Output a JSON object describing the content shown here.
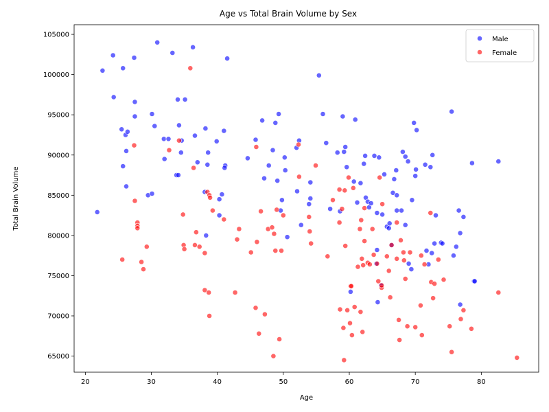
{
  "chart_data": {
    "type": "scatter",
    "title": "Age vs Total Brain Volume by Sex",
    "xlabel": "Age",
    "ylabel": "Total Brain Volume",
    "xlim": [
      18.3,
      88.7
    ],
    "ylim": [
      63000,
      106200
    ],
    "x_ticks": [
      20,
      30,
      40,
      50,
      60,
      70,
      80
    ],
    "y_ticks": [
      65000,
      70000,
      75000,
      80000,
      85000,
      90000,
      95000,
      100000,
      105000
    ],
    "grid": false,
    "legend_position": "top-right",
    "series": [
      {
        "name": "Male",
        "color": "#0000ff",
        "points": [
          [
            21.8,
            82900
          ],
          [
            22.6,
            100500
          ],
          [
            24.2,
            102400
          ],
          [
            24.3,
            97200
          ],
          [
            25.5,
            93200
          ],
          [
            25.7,
            100800
          ],
          [
            25.7,
            88600
          ],
          [
            26.1,
            92500
          ],
          [
            26.2,
            86100
          ],
          [
            26.4,
            92900
          ],
          [
            26.2,
            90500
          ],
          [
            27.4,
            102100
          ],
          [
            27.5,
            96600
          ],
          [
            27.5,
            94800
          ],
          [
            29.5,
            85000
          ],
          [
            30.1,
            95100
          ],
          [
            30.1,
            85200
          ],
          [
            30.5,
            93600
          ],
          [
            30.9,
            104000
          ],
          [
            31.9,
            92000
          ],
          [
            32.0,
            89500
          ],
          [
            32.6,
            92000
          ],
          [
            33.2,
            102700
          ],
          [
            33.8,
            87500
          ],
          [
            34.0,
            96900
          ],
          [
            34.1,
            87500
          ],
          [
            34.2,
            93700
          ],
          [
            34.5,
            90300
          ],
          [
            34.6,
            91800
          ],
          [
            35.1,
            96900
          ],
          [
            36.3,
            103400
          ],
          [
            36.6,
            92400
          ],
          [
            37.0,
            89100
          ],
          [
            38.1,
            85400
          ],
          [
            38.2,
            93300
          ],
          [
            38.3,
            80000
          ],
          [
            38.6,
            90300
          ],
          [
            38.5,
            88800
          ],
          [
            39.9,
            91700
          ],
          [
            40.3,
            84500
          ],
          [
            40.3,
            82500
          ],
          [
            40.7,
            85100
          ],
          [
            41.0,
            93000
          ],
          [
            41.2,
            88700
          ],
          [
            41.1,
            88400
          ],
          [
            41.5,
            102000
          ],
          [
            44.6,
            89600
          ],
          [
            45.8,
            91900
          ],
          [
            46.8,
            94300
          ],
          [
            47.1,
            87100
          ],
          [
            47.8,
            88700
          ],
          [
            48.4,
            90600
          ],
          [
            48.8,
            94000
          ],
          [
            49.1,
            86800
          ],
          [
            49.3,
            95100
          ],
          [
            49.6,
            83100
          ],
          [
            49.8,
            84400
          ],
          [
            50.2,
            89700
          ],
          [
            50.3,
            88100
          ],
          [
            50.6,
            79800
          ],
          [
            52.0,
            90900
          ],
          [
            52.1,
            85500
          ],
          [
            52.4,
            91800
          ],
          [
            52.7,
            81300
          ],
          [
            53.9,
            83900
          ],
          [
            54.1,
            86600
          ],
          [
            54.1,
            84600
          ],
          [
            55.4,
            99900
          ],
          [
            56.0,
            95100
          ],
          [
            56.5,
            91500
          ],
          [
            57.1,
            83300
          ],
          [
            58.2,
            90300
          ],
          [
            58.6,
            83000
          ],
          [
            59.0,
            94800
          ],
          [
            59.2,
            90400
          ],
          [
            59.4,
            91000
          ],
          [
            59.6,
            88500
          ],
          [
            60.2,
            73000
          ],
          [
            60.7,
            86700
          ],
          [
            60.9,
            94400
          ],
          [
            61.2,
            84100
          ],
          [
            61.7,
            86500
          ],
          [
            62.2,
            88900
          ],
          [
            62.4,
            89900
          ],
          [
            62.5,
            84700
          ],
          [
            62.8,
            84200
          ],
          [
            63.0,
            83500
          ],
          [
            63.3,
            84000
          ],
          [
            63.8,
            89900
          ],
          [
            64.1,
            76500
          ],
          [
            64.2,
            82800
          ],
          [
            64.2,
            78200
          ],
          [
            64.3,
            71700
          ],
          [
            64.5,
            89700
          ],
          [
            64.8,
            73800
          ],
          [
            65.0,
            82600
          ],
          [
            65.3,
            87600
          ],
          [
            65.7,
            81100
          ],
          [
            66.0,
            80900
          ],
          [
            66.1,
            81500
          ],
          [
            66.4,
            78800
          ],
          [
            66.6,
            85300
          ],
          [
            66.8,
            87000
          ],
          [
            67.1,
            88100
          ],
          [
            67.2,
            85000
          ],
          [
            67.2,
            83100
          ],
          [
            67.9,
            83100
          ],
          [
            68.1,
            90400
          ],
          [
            68.5,
            81300
          ],
          [
            68.5,
            89800
          ],
          [
            68.9,
            89200
          ],
          [
            69.0,
            76500
          ],
          [
            69.4,
            75800
          ],
          [
            69.5,
            84400
          ],
          [
            69.8,
            94000
          ],
          [
            70.1,
            88200
          ],
          [
            70.2,
            93100
          ],
          [
            70.0,
            87400
          ],
          [
            71.5,
            88800
          ],
          [
            71.7,
            78100
          ],
          [
            72.0,
            76400
          ],
          [
            72.3,
            88500
          ],
          [
            72.5,
            77800
          ],
          [
            72.6,
            90000
          ],
          [
            72.9,
            79000
          ],
          [
            73.1,
            82500
          ],
          [
            73.9,
            79100
          ],
          [
            74.1,
            79000
          ],
          [
            75.5,
            95400
          ],
          [
            75.8,
            77500
          ],
          [
            76.2,
            78600
          ],
          [
            76.6,
            83100
          ],
          [
            76.8,
            80300
          ],
          [
            76.8,
            71400
          ],
          [
            77.3,
            82300
          ],
          [
            78.6,
            89000
          ],
          [
            78.9,
            74300
          ],
          [
            79.0,
            74300
          ],
          [
            82.6,
            89200
          ]
        ]
      },
      {
        "name": "Female",
        "color": "#ff0000",
        "points": [
          [
            25.6,
            77000
          ],
          [
            27.4,
            91200
          ],
          [
            27.5,
            84300
          ],
          [
            27.9,
            81600
          ],
          [
            27.9,
            81200
          ],
          [
            27.9,
            80900
          ],
          [
            28.5,
            76700
          ],
          [
            28.8,
            75800
          ],
          [
            29.3,
            78600
          ],
          [
            32.7,
            90600
          ],
          [
            34.2,
            91800
          ],
          [
            34.8,
            82600
          ],
          [
            34.9,
            78800
          ],
          [
            35.0,
            78300
          ],
          [
            35.9,
            100800
          ],
          [
            36.4,
            88400
          ],
          [
            36.8,
            80400
          ],
          [
            36.6,
            78800
          ],
          [
            37.3,
            78600
          ],
          [
            38.1,
            77800
          ],
          [
            38.1,
            73200
          ],
          [
            38.7,
            72900
          ],
          [
            38.5,
            85400
          ],
          [
            38.8,
            85000
          ],
          [
            38.9,
            84700
          ],
          [
            38.8,
            70000
          ],
          [
            39.3,
            83100
          ],
          [
            41.0,
            82000
          ],
          [
            42.7,
            72900
          ],
          [
            43.0,
            79500
          ],
          [
            43.3,
            80800
          ],
          [
            45.1,
            77900
          ],
          [
            45.8,
            71000
          ],
          [
            46.0,
            79200
          ],
          [
            45.9,
            91000
          ],
          [
            46.3,
            67800
          ],
          [
            46.6,
            83000
          ],
          [
            47.2,
            70200
          ],
          [
            47.7,
            80800
          ],
          [
            48.3,
            81000
          ],
          [
            48.5,
            65000
          ],
          [
            48.8,
            78100
          ],
          [
            48.6,
            80200
          ],
          [
            49.0,
            83200
          ],
          [
            49.4,
            67100
          ],
          [
            49.7,
            78100
          ],
          [
            50.0,
            82500
          ],
          [
            52.3,
            91300
          ],
          [
            52.4,
            87300
          ],
          [
            53.9,
            82300
          ],
          [
            54.0,
            80500
          ],
          [
            54.2,
            79000
          ],
          [
            54.9,
            88700
          ],
          [
            56.7,
            77400
          ],
          [
            57.5,
            84400
          ],
          [
            58.5,
            85700
          ],
          [
            58.6,
            70800
          ],
          [
            58.5,
            81600
          ],
          [
            58.9,
            83300
          ],
          [
            59.1,
            68500
          ],
          [
            59.2,
            64500
          ],
          [
            59.3,
            85600
          ],
          [
            59.4,
            78700
          ],
          [
            59.7,
            70700
          ],
          [
            59.9,
            87200
          ],
          [
            60.1,
            69100
          ],
          [
            60.2,
            73700
          ],
          [
            60.3,
            73700
          ],
          [
            60.4,
            67600
          ],
          [
            60.6,
            85900
          ],
          [
            60.8,
            71100
          ],
          [
            61.3,
            76100
          ],
          [
            61.6,
            80800
          ],
          [
            61.7,
            70500
          ],
          [
            61.8,
            81900
          ],
          [
            61.9,
            77100
          ],
          [
            62.0,
            68000
          ],
          [
            62.1,
            76300
          ],
          [
            62.3,
            83400
          ],
          [
            62.3,
            79300
          ],
          [
            62.8,
            76600
          ],
          [
            63.1,
            76400
          ],
          [
            63.5,
            80800
          ],
          [
            63.7,
            77600
          ],
          [
            64.2,
            76500
          ],
          [
            64.4,
            74300
          ],
          [
            64.6,
            87200
          ],
          [
            64.9,
            73500
          ],
          [
            64.9,
            73800
          ],
          [
            65.0,
            83900
          ],
          [
            65.7,
            77400
          ],
          [
            66.0,
            75600
          ],
          [
            66.2,
            72300
          ],
          [
            66.4,
            78800
          ],
          [
            67.2,
            81600
          ],
          [
            67.2,
            77100
          ],
          [
            67.5,
            69500
          ],
          [
            67.6,
            67000
          ],
          [
            67.8,
            79400
          ],
          [
            68.2,
            77900
          ],
          [
            68.3,
            76900
          ],
          [
            68.5,
            74600
          ],
          [
            68.8,
            68700
          ],
          [
            69.2,
            77900
          ],
          [
            70.0,
            68600
          ],
          [
            70.8,
            71300
          ],
          [
            70.9,
            77500
          ],
          [
            71.0,
            67600
          ],
          [
            71.4,
            76400
          ],
          [
            72.3,
            82800
          ],
          [
            72.4,
            74200
          ],
          [
            72.7,
            72200
          ],
          [
            72.9,
            74000
          ],
          [
            73.5,
            77000
          ],
          [
            74.3,
            74500
          ],
          [
            75.2,
            68700
          ],
          [
            75.5,
            65500
          ],
          [
            76.9,
            69600
          ],
          [
            77.3,
            70700
          ],
          [
            78.5,
            68400
          ],
          [
            82.6,
            72900
          ],
          [
            85.4,
            64800
          ]
        ]
      }
    ]
  }
}
